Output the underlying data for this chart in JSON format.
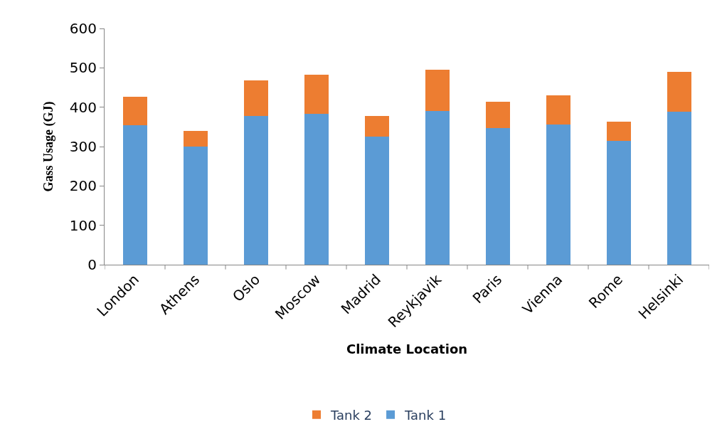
{
  "chart_data": {
    "type": "bar",
    "stacked": true,
    "xlabel": "Climate Location",
    "ylabel": "Gass Usage (GJ)",
    "categories": [
      "London",
      "Athens",
      "Oslo",
      "Moscow",
      "Madrid",
      "Reykjavik",
      "Paris",
      "Vienna",
      "Rome",
      "Helsinki"
    ],
    "series": [
      {
        "name": "Tank 1",
        "color": "#5b9bd5",
        "values": [
          354,
          300,
          378,
          383,
          325,
          390,
          347,
          356,
          314,
          389
        ]
      },
      {
        "name": "Tank 2",
        "color": "#ed7d31",
        "values": [
          72,
          40,
          90,
          100,
          53,
          105,
          67,
          74,
          49,
          101
        ]
      }
    ],
    "ylim": [
      0,
      600
    ],
    "yticks": [
      0,
      100,
      200,
      300,
      400,
      500,
      600
    ],
    "grid": false,
    "legend": "bottom"
  }
}
